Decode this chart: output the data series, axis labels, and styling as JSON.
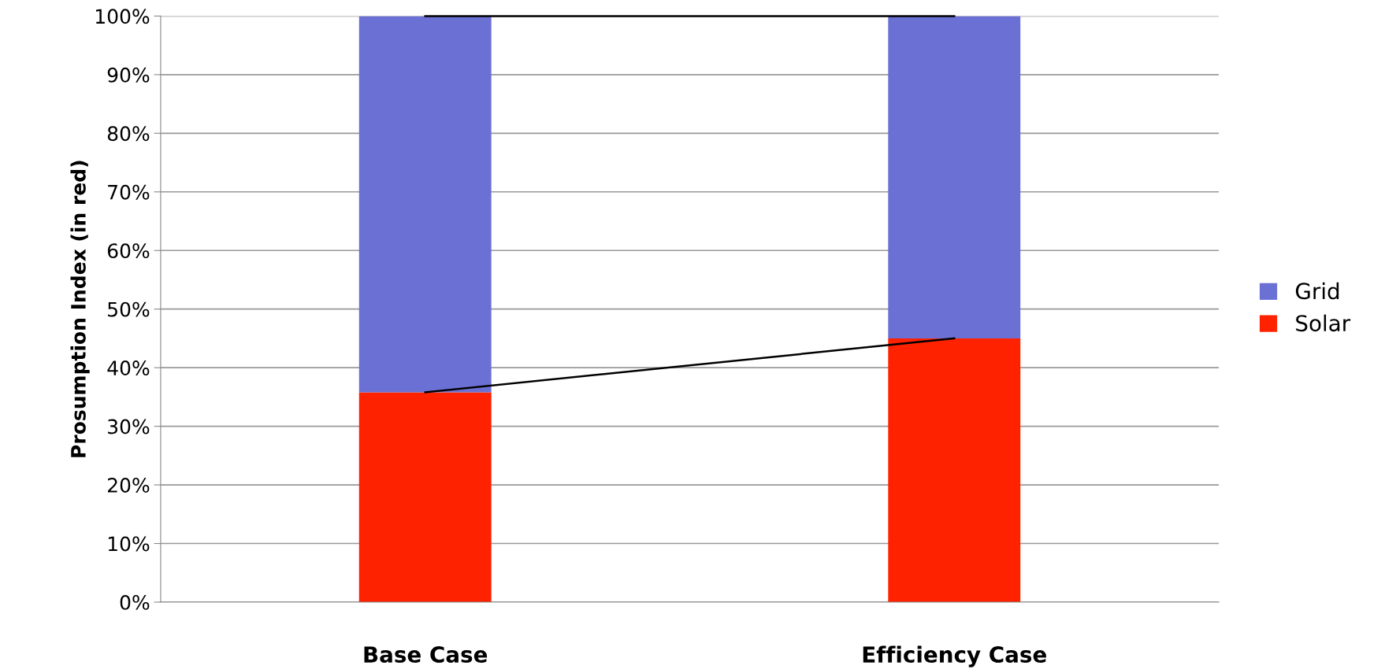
{
  "chart_data": {
    "type": "bar",
    "stacked": true,
    "ylabel": "Prosumption Index (in red)",
    "categories": [
      "Base Case",
      "Efficiency Case"
    ],
    "series": [
      {
        "name": "Solar",
        "color": "#ff2200",
        "values": [
          35.8,
          45.0
        ]
      },
      {
        "name": "Grid",
        "color": "#6b70d4",
        "values": [
          64.2,
          55.0
        ]
      },
      {
        "type": "line",
        "color": "#000000",
        "values": [
          35.8,
          45.0
        ]
      },
      {
        "type": "line",
        "color": "#000000",
        "values": [
          100,
          100
        ]
      }
    ],
    "ylim": [
      0,
      100
    ],
    "yticks": [
      {
        "value": 0,
        "label": "0%"
      },
      {
        "value": 10,
        "label": "10%"
      },
      {
        "value": 20,
        "label": "20%"
      },
      {
        "value": 30,
        "label": "30%"
      },
      {
        "value": 40,
        "label": "40%"
      },
      {
        "value": 50,
        "label": "50%"
      },
      {
        "value": 60,
        "label": "60%"
      },
      {
        "value": 70,
        "label": "70%"
      },
      {
        "value": 80,
        "label": "80%"
      },
      {
        "value": 90,
        "label": "90%"
      },
      {
        "value": 100,
        "label": "100%"
      }
    ],
    "grid": "y",
    "legend": "right"
  }
}
